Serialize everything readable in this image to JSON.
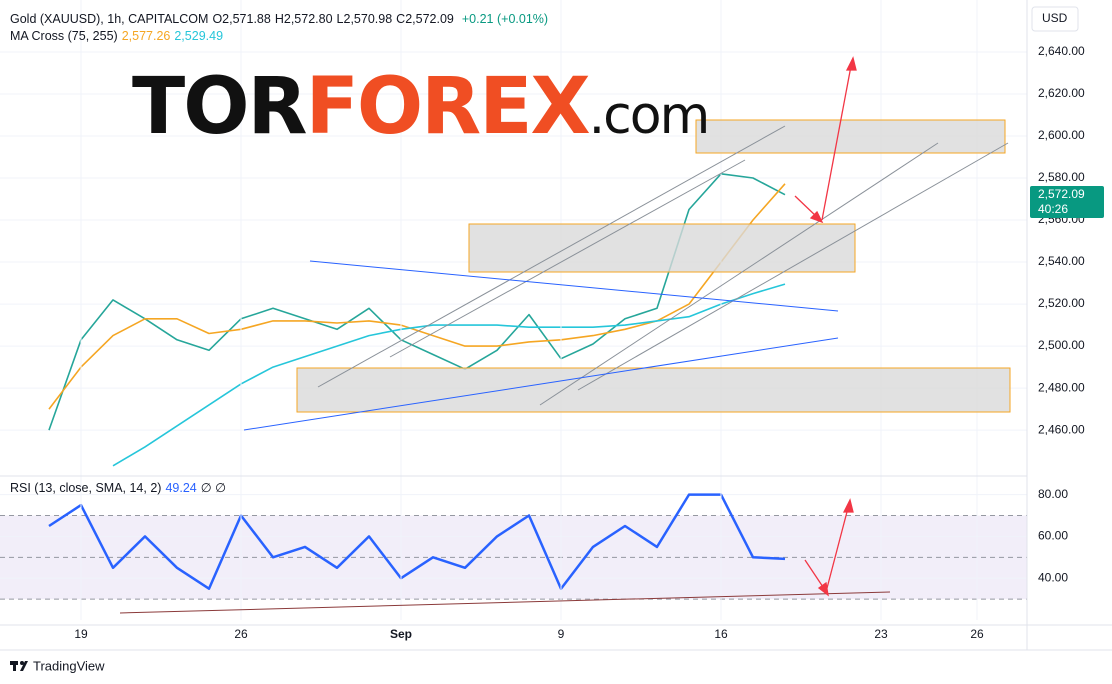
{
  "page": {
    "symbol": "Gold (XAUUSD), 1h, CAPITALCOM",
    "ohlc": [
      {
        "k": "O",
        "v": "2,571.88"
      },
      {
        "k": "H",
        "v": "2,572.80"
      },
      {
        "k": "L",
        "v": "2,570.98"
      },
      {
        "k": "C",
        "v": "2,572.09"
      }
    ],
    "change": "+0.21 (+0.01%)",
    "ma_title": "MA Cross (75, 255)",
    "ma_fast": "2,577.26",
    "ma_slow": "2,529.49",
    "rsi_title": "RSI (13, close, SMA, 14, 2)",
    "rsi_value": "49.24",
    "rsi_empty": "∅ ∅",
    "currency": "USD",
    "price_label": "2,572.09",
    "countdown": "40:26",
    "logo": [
      "TOR",
      "FOREX",
      ".com"
    ],
    "brand": "TradingView"
  },
  "chart_data": [
    {
      "type": "line",
      "categories": [
        null,
        "19",
        null,
        null,
        null,
        null,
        "26",
        null,
        null,
        null,
        null,
        "Sep",
        null,
        null,
        null,
        null,
        "9",
        null,
        null,
        null,
        null,
        "16",
        null,
        null,
        null,
        null,
        "23",
        null,
        null,
        "26",
        null
      ],
      "series": [
        {
          "name": "Gold",
          "color": "#26a69a",
          "values": [
            2460,
            2503,
            2522,
            2513,
            2503,
            2498,
            2513,
            2518,
            2513,
            2508,
            2518,
            2503,
            2496,
            2489,
            2498,
            2515,
            2494,
            2501,
            2513,
            2518,
            2565,
            2582,
            2580,
            2572.09,
            null,
            null,
            null,
            null,
            null,
            null,
            null
          ]
        },
        {
          "name": "MA 75",
          "color": "#f5a623",
          "values": [
            2470,
            2490,
            2505,
            2513,
            2513,
            2506,
            2508,
            2512,
            2512,
            2511,
            2512,
            2510,
            2505,
            2500,
            2500,
            2502,
            2503,
            2505,
            2508,
            2512,
            2520,
            2540,
            2560,
            2577.26,
            null,
            null,
            null,
            null,
            null,
            null,
            null
          ]
        },
        {
          "name": "MA 255",
          "color": "#26c6da",
          "values": [
            null,
            null,
            2443,
            2452,
            2462,
            2472,
            2482,
            2490,
            2495,
            2500,
            2505,
            2508,
            2510,
            2510,
            2510,
            2509,
            2509,
            2509,
            2510,
            2512,
            2514,
            2520,
            2525,
            2529.49,
            null,
            null,
            null,
            null,
            null,
            null,
            null
          ]
        }
      ],
      "ylim": [
        2441,
        2660
      ],
      "yticks": [
        {
          "value": 2460,
          "label": "2,460.00"
        },
        {
          "value": 2480,
          "label": "2,480.00"
        },
        {
          "value": 2500,
          "label": "2,500.00"
        },
        {
          "value": 2520,
          "label": "2,520.00"
        },
        {
          "value": 2540,
          "label": "2,540.00"
        },
        {
          "value": 2560,
          "label": "2,560.00"
        },
        {
          "value": 2580,
          "label": "2,580.00"
        },
        {
          "value": 2600,
          "label": "2,600.00"
        },
        {
          "value": 2620,
          "label": "2,620.00"
        },
        {
          "value": 2640,
          "label": "2,640.00"
        }
      ],
      "grid": true
    },
    {
      "type": "line",
      "series": [
        {
          "name": "RSI",
          "color": "#2962ff",
          "values": [
            65,
            75,
            45,
            60,
            45,
            35,
            70,
            50,
            55,
            45,
            60,
            40,
            50,
            45,
            60,
            70,
            35,
            55,
            65,
            55,
            80,
            80,
            50,
            49.24,
            null,
            null,
            null,
            null,
            null,
            null,
            null
          ]
        }
      ],
      "ylim": [
        20,
        87
      ],
      "yticks": [
        {
          "value": 40,
          "label": "40.00"
        },
        {
          "value": 60,
          "label": "60.00"
        },
        {
          "value": 80,
          "label": "80.00"
        }
      ],
      "levels": [
        30,
        50,
        70
      ],
      "band_color": "#7e57c2",
      "grid": true
    }
  ]
}
